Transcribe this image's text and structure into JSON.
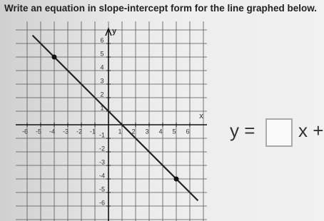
{
  "question": "Write an equation in slope-intercept form for the line graphed below.",
  "graph": {
    "x_label": "x",
    "y_label": "y",
    "xticks": [
      -6,
      -5,
      -4,
      -3,
      -2,
      -1,
      1,
      2,
      3,
      4,
      5,
      6
    ],
    "yticks": [
      6,
      5,
      4,
      3,
      2,
      1,
      -1,
      -2,
      -3,
      -4,
      -5,
      -6
    ],
    "points": [
      {
        "x": -4,
        "y": 5
      },
      {
        "x": 5,
        "y": -4
      }
    ]
  },
  "answer": {
    "lhs": "y =",
    "rhs": "x +"
  }
}
